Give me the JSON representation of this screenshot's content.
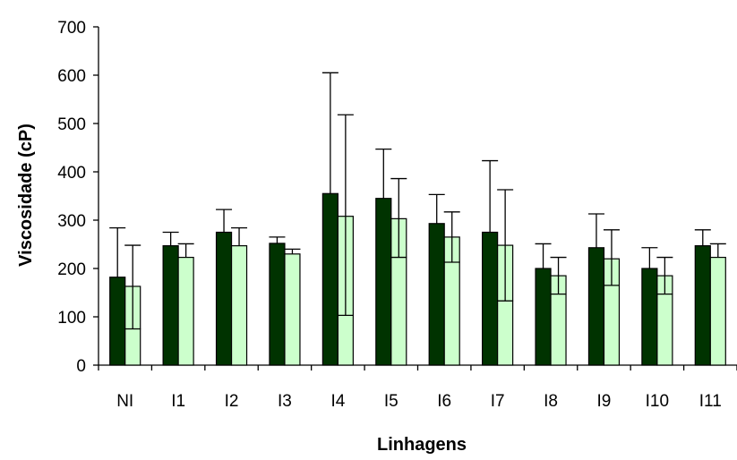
{
  "chart_data": {
    "type": "bar",
    "title": "",
    "xlabel": "Linhagens",
    "ylabel": "Viscosidade (cP)",
    "ylim": [
      0,
      700
    ],
    "yticks": [
      0,
      100,
      200,
      300,
      400,
      500,
      600,
      700
    ],
    "grid": false,
    "legend": "none",
    "categories": [
      "NI",
      "I1",
      "I2",
      "I3",
      "I4",
      "I5",
      "I6",
      "I7",
      "I8",
      "I9",
      "I10",
      "I11"
    ],
    "series": [
      {
        "color": "#003300",
        "values": [
          182,
          247,
          275,
          252,
          355,
          345,
          293,
          275,
          200,
          243,
          200,
          247
        ],
        "error_upper": [
          102,
          28,
          47,
          13,
          250,
          102,
          60,
          148,
          51,
          70,
          43,
          33
        ],
        "error_lower": [
          0,
          0,
          0,
          0,
          0,
          0,
          0,
          0,
          0,
          0,
          0,
          0
        ]
      },
      {
        "color": "#ccffcc",
        "values": [
          163,
          223,
          247,
          230,
          308,
          303,
          265,
          248,
          185,
          220,
          185,
          223
        ],
        "error_upper": [
          85,
          28,
          37,
          10,
          210,
          83,
          52,
          115,
          38,
          60,
          38,
          28
        ],
        "error_lower": [
          88,
          0,
          0,
          0,
          205,
          80,
          52,
          115,
          38,
          55,
          38,
          0
        ]
      }
    ]
  }
}
